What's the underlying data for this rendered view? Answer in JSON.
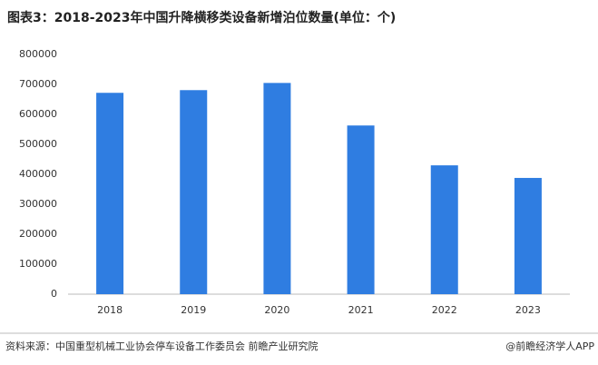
{
  "chart_data": {
    "type": "bar",
    "title": "图表3：2018-2023年中国升降横移类设备新增泊位数量(单位：个)",
    "categories": [
      "2018",
      "2019",
      "2020",
      "2021",
      "2022",
      "2023"
    ],
    "values": [
      672000,
      681000,
      705000,
      563000,
      430000,
      388000
    ],
    "color": "#2f7de1",
    "ylim": [
      0,
      800000
    ],
    "yticks": [
      0,
      100000,
      200000,
      300000,
      400000,
      500000,
      600000,
      700000,
      800000
    ],
    "grid": false,
    "source": "资料来源：中国重型机械工业协会停车设备工作委员会 前瞻产业研究院",
    "credit": "@前瞻经济学人APP"
  }
}
